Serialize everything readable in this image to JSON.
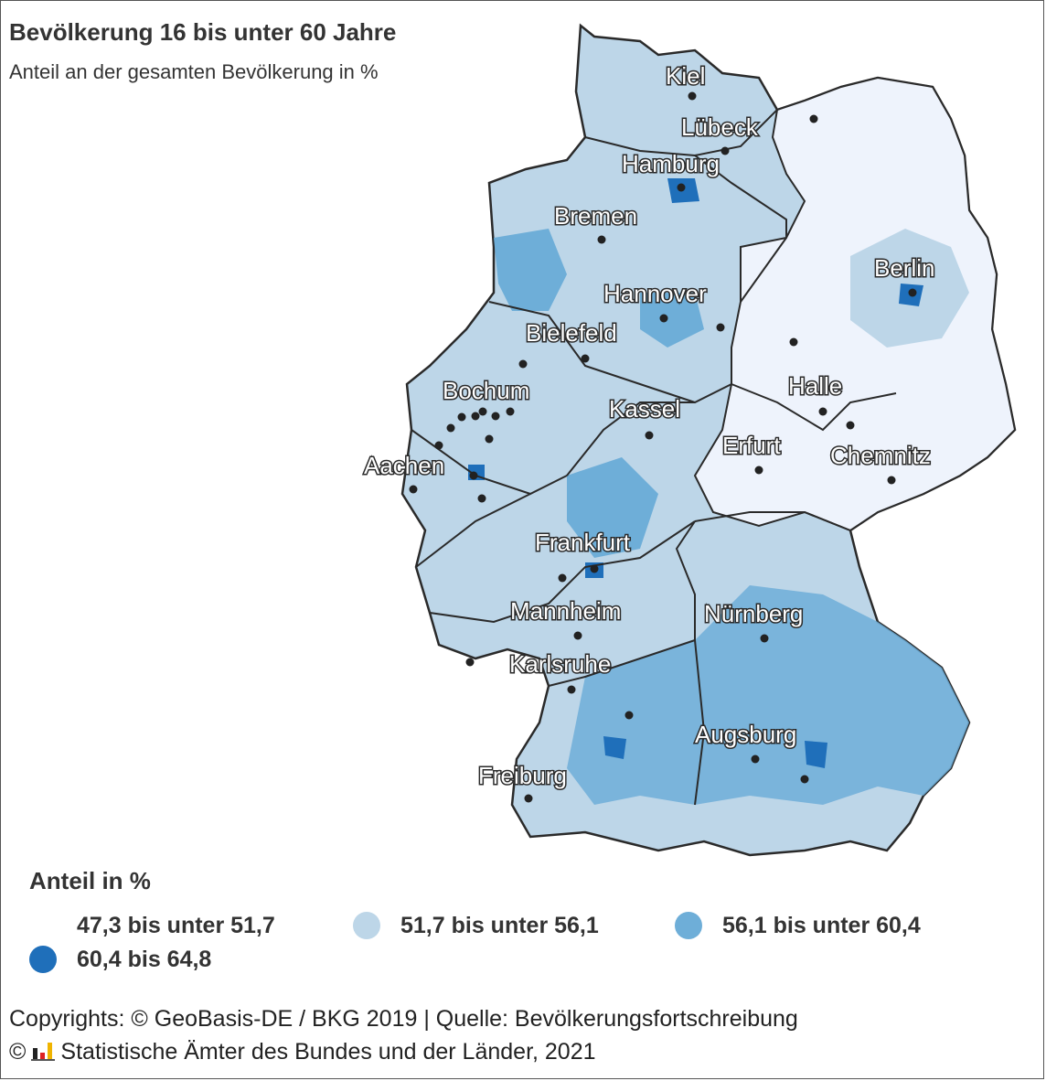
{
  "header": {
    "title": "Bevölkerung 16 bis unter 60 Jahre",
    "subtitle": "Anteil an der gesamten Bevölkerung in %"
  },
  "colors": {
    "class1": "#eef3fc",
    "class2": "#bdd6e8",
    "class3": "#6eaed8",
    "class4": "#1f6fba",
    "border": "#2a2a2a",
    "city_dot": "#222222"
  },
  "cities": [
    {
      "name": "Kiel"
    },
    {
      "name": "Lübeck"
    },
    {
      "name": "Hamburg"
    },
    {
      "name": "Bremen"
    },
    {
      "name": "Berlin"
    },
    {
      "name": "Hannover"
    },
    {
      "name": "Bielefeld"
    },
    {
      "name": "Bochum"
    },
    {
      "name": "Kassel"
    },
    {
      "name": "Halle"
    },
    {
      "name": "Erfurt"
    },
    {
      "name": "Chemnitz"
    },
    {
      "name": "Aachen"
    },
    {
      "name": "Frankfurt"
    },
    {
      "name": "Mannheim"
    },
    {
      "name": "Nürnberg"
    },
    {
      "name": "Karlsruhe"
    },
    {
      "name": "Augsburg"
    },
    {
      "name": "Freiburg"
    }
  ],
  "legend": {
    "title": "Anteil in %",
    "items": [
      {
        "label": "47,3 bis unter 51,7",
        "color": "#ffffff"
      },
      {
        "label": "51,7 bis unter 56,1",
        "color": "#bdd6e8"
      },
      {
        "label": "56,1 bis unter 60,4",
        "color": "#6eaed8"
      },
      {
        "label": "60,4 bis 64,8",
        "color": "#1f6fba"
      }
    ]
  },
  "footer": {
    "line1": "Copyrights: © GeoBasis-DE / BKG 2019 | Quelle: Bevölkerungsfortschreibung",
    "line2_prefix": "©",
    "line2": "Statistische Ämter des Bundes und der Länder, 2021"
  }
}
